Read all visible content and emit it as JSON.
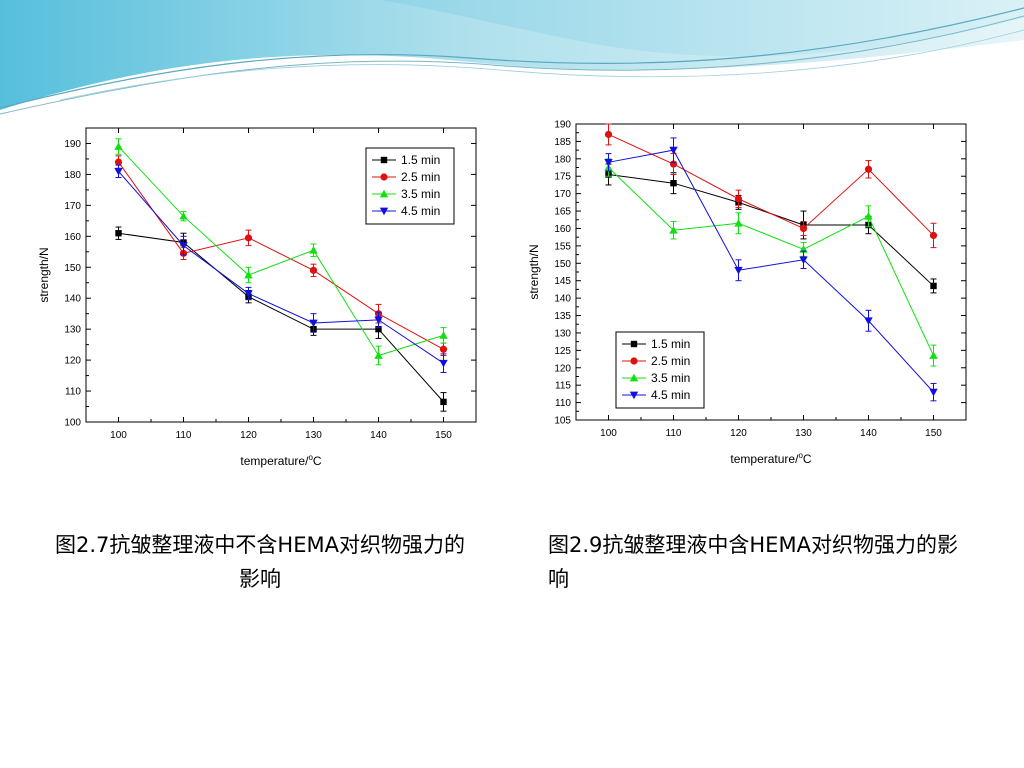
{
  "colors": {
    "banner_light": "#e6f5f8",
    "banner_mid": "#aee0ec",
    "banner_dark": "#56bfdc",
    "series": [
      "#000000",
      "#e01010",
      "#10e010",
      "#1010e0"
    ]
  },
  "captions": {
    "left": "图2.7抗皱整理液中不含HEMA对织物强力的影响",
    "right": "图2.9抗皱整理液中含HEMA对织物强力的影响"
  },
  "chart_data": [
    {
      "type": "line",
      "title": "",
      "xlabel_main": "temperature/",
      "xlabel_sup": "o",
      "xlabel_unit": "C",
      "ylabel": "strength/N",
      "x": [
        100,
        110,
        120,
        130,
        140,
        150
      ],
      "xlim": [
        95,
        155
      ],
      "ylim": [
        100,
        195
      ],
      "yticks": [
        100,
        110,
        120,
        130,
        140,
        150,
        160,
        170,
        180,
        190
      ],
      "xticks": [
        100,
        110,
        120,
        130,
        140,
        150
      ],
      "legend_position": "top-right",
      "error_bars": true,
      "series": [
        {
          "name": "1.5 min",
          "marker": "square",
          "color": "#000000",
          "values": [
            161,
            158,
            140.5,
            130,
            130,
            106.5
          ],
          "errors": [
            2,
            3,
            2,
            2,
            3,
            3
          ]
        },
        {
          "name": "2.5 min",
          "marker": "circle",
          "color": "#e01010",
          "values": [
            184,
            154.5,
            159.5,
            149,
            135,
            123.5
          ],
          "errors": [
            2,
            2,
            2.5,
            2,
            3,
            2
          ]
        },
        {
          "name": "3.5 min",
          "marker": "triangle-up",
          "color": "#10e010",
          "values": [
            189,
            166.5,
            147.5,
            155.5,
            121.5,
            128
          ],
          "errors": [
            2.5,
            1.5,
            2.5,
            2,
            3,
            2.5
          ]
        },
        {
          "name": "4.5 min",
          "marker": "triangle-down",
          "color": "#1010e0",
          "values": [
            181,
            157,
            141.5,
            132,
            133,
            119
          ],
          "errors": [
            2,
            3,
            2,
            3,
            2.5,
            3
          ]
        }
      ]
    },
    {
      "type": "line",
      "title": "",
      "xlabel_main": "temperature/",
      "xlabel_sup": "o",
      "xlabel_unit": "C",
      "ylabel": "strength/N",
      "x": [
        100,
        110,
        120,
        130,
        140,
        150
      ],
      "xlim": [
        95,
        155
      ],
      "ylim": [
        105,
        190
      ],
      "yticks": [
        105,
        110,
        115,
        120,
        125,
        130,
        135,
        140,
        145,
        150,
        155,
        160,
        165,
        170,
        175,
        180,
        185,
        190
      ],
      "xticks": [
        100,
        110,
        120,
        130,
        140,
        150
      ],
      "legend_position": "lower-left",
      "error_bars": true,
      "series": [
        {
          "name": "1.5 min",
          "marker": "square",
          "color": "#000000",
          "values": [
            175.5,
            173,
            167.5,
            161,
            161,
            143.5
          ],
          "errors": [
            3,
            3,
            2,
            4,
            2.5,
            2
          ]
        },
        {
          "name": "2.5 min",
          "marker": "circle",
          "color": "#e01010",
          "values": [
            187,
            178.5,
            168.5,
            160,
            177,
            158
          ],
          "errors": [
            3,
            3,
            2.5,
            2,
            2.5,
            3.5
          ]
        },
        {
          "name": "3.5 min",
          "marker": "triangle-up",
          "color": "#10e010",
          "values": [
            177.5,
            159.5,
            161.5,
            154,
            163.5,
            123.5
          ],
          "errors": [
            2.5,
            2.5,
            3,
            2,
            3,
            3
          ]
        },
        {
          "name": "4.5 min",
          "marker": "triangle-down",
          "color": "#1010e0",
          "values": [
            179,
            182.5,
            148,
            151,
            133.5,
            113
          ],
          "errors": [
            2.5,
            3.5,
            3,
            2.5,
            3,
            2.5
          ]
        }
      ]
    }
  ]
}
